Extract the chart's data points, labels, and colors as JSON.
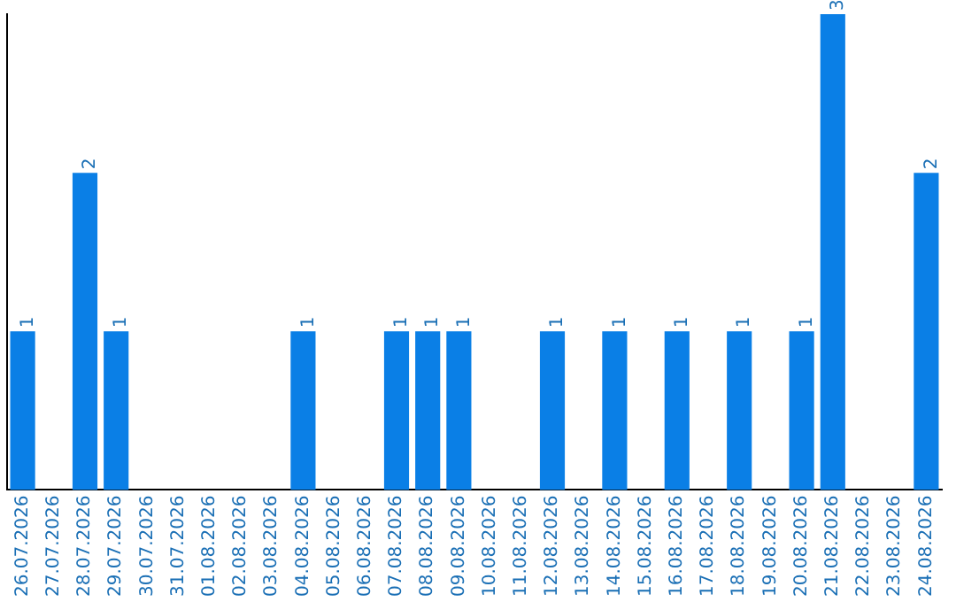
{
  "chart_data": {
    "type": "bar",
    "categories": [
      "26.07.2026",
      "27.07.2026",
      "28.07.2026",
      "29.07.2026",
      "30.07.2026",
      "31.07.2026",
      "01.08.2026",
      "02.08.2026",
      "03.08.2026",
      "04.08.2026",
      "05.08.2026",
      "06.08.2026",
      "07.08.2026",
      "08.08.2026",
      "09.08.2026",
      "10.08.2026",
      "11.08.2026",
      "12.08.2026",
      "13.08.2026",
      "14.08.2026",
      "15.08.2026",
      "16.08.2026",
      "17.08.2026",
      "18.08.2026",
      "19.08.2026",
      "20.08.2026",
      "21.08.2026",
      "22.08.2026",
      "23.08.2026",
      "24.08.2026"
    ],
    "values": [
      1,
      0,
      2,
      1,
      0,
      0,
      0,
      0,
      0,
      1,
      0,
      0,
      1,
      1,
      1,
      0,
      0,
      1,
      0,
      1,
      0,
      1,
      0,
      1,
      0,
      1,
      3,
      0,
      0,
      2
    ],
    "value_labels": [
      "1",
      null,
      "2",
      "1",
      null,
      null,
      null,
      null,
      null,
      "1",
      null,
      null,
      "1",
      "1",
      "1",
      null,
      null,
      "1",
      null,
      "1",
      null,
      "1",
      null,
      "1",
      null,
      "1",
      "3",
      null,
      null,
      "2"
    ],
    "color": "#0a7fe6",
    "ylim": [
      0,
      3
    ],
    "tick_labels": "x",
    "grid": false,
    "legend": false
  }
}
